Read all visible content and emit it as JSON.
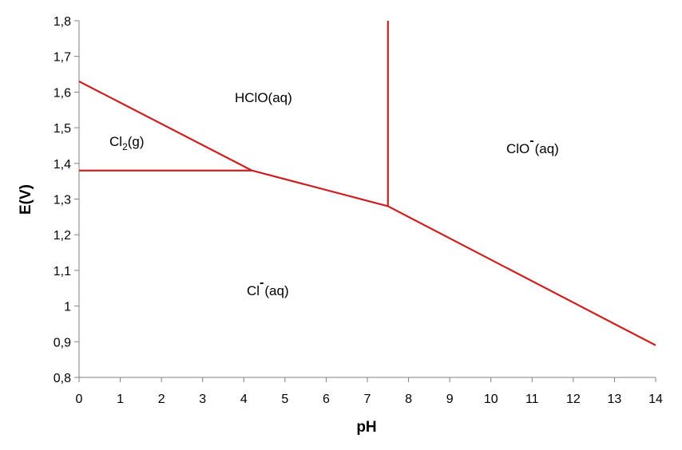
{
  "chart_data": {
    "type": "line",
    "xlabel": "pH",
    "ylabel": "E(V)",
    "xlim": [
      0,
      14
    ],
    "ylim": [
      0.8,
      1.8
    ],
    "x_ticks": [
      "0",
      "1",
      "2",
      "3",
      "4",
      "5",
      "6",
      "7",
      "8",
      "9",
      "10",
      "11",
      "12",
      "13",
      "14"
    ],
    "y_ticks": [
      "0,8",
      "0,9",
      "1",
      "1,1",
      "1,2",
      "1,3",
      "1,4",
      "1,5",
      "1,6",
      "1,7",
      "1,8"
    ],
    "grid": false,
    "line_color": "#cc2020",
    "series": [
      {
        "points": [
          [
            0,
            1.63
          ],
          [
            4.2,
            1.38
          ]
        ]
      },
      {
        "points": [
          [
            0,
            1.38
          ],
          [
            4.2,
            1.38
          ]
        ]
      },
      {
        "points": [
          [
            4.2,
            1.38
          ],
          [
            7.5,
            1.28
          ]
        ]
      },
      {
        "points": [
          [
            7.5,
            1.28
          ],
          [
            7.5,
            1.8
          ]
        ]
      },
      {
        "points": [
          [
            7.5,
            1.28
          ],
          [
            14,
            0.89
          ]
        ]
      }
    ],
    "regions": [
      {
        "species": "Cl",
        "subscript": "2",
        "suffix": "(g)"
      },
      {
        "species": "HClO(aq)"
      },
      {
        "species": "ClO",
        "charge": "-",
        "suffix": "(aq)"
      },
      {
        "species": "Cl",
        "charge": "-",
        "suffix": "(aq)"
      }
    ]
  }
}
